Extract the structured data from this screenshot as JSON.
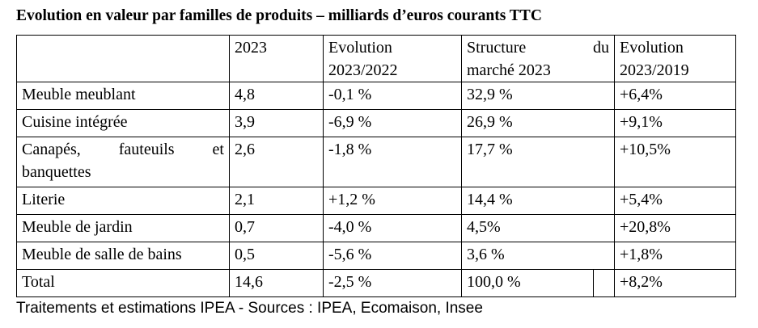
{
  "title": "Evolution en valeur par familles de produits – milliards d’euros courants TTC",
  "table": {
    "headers": {
      "col1": "2023",
      "col2_line1": "Evolution",
      "col2_line2": "2023/2022",
      "col3_line1a": "Structure",
      "col3_line1b": "du",
      "col3_line2": "marché 2023",
      "col4_line1": "Evolution",
      "col4_line2": "2023/2019"
    },
    "rows": [
      {
        "label": "Meuble meublant",
        "v2023": "4,8",
        "evo2022": "-0,1 %",
        "structure": "32,9 %",
        "evo2019": "+6,4%"
      },
      {
        "label": "Cuisine intégrée",
        "v2023": "3,9",
        "evo2022": "-6,9 %",
        "structure": "26,9 %",
        "evo2019": "+9,1%"
      },
      {
        "label_line1": "Canapés, fauteuils et",
        "label_line2": "banquettes",
        "v2023": "2,6",
        "evo2022": "-1,8 %",
        "structure": "17,7 %",
        "evo2019": "+10,5%"
      },
      {
        "label": "Literie",
        "v2023": "2,1",
        "evo2022": "+1,2 %",
        "structure": "14,4 %",
        "evo2019": "+5,4%"
      },
      {
        "label": "Meuble de jardin",
        "v2023": "0,7",
        "evo2022": "-4,0 %",
        "structure": "4,5%",
        "evo2019": "+20,8%"
      },
      {
        "label": "Meuble de salle de bains",
        "v2023": "0,5",
        "evo2022": "-5,6 %",
        "structure": "3,6 %",
        "evo2019": "+1,8%"
      },
      {
        "label": "Total",
        "v2023": "14,6",
        "evo2022": "-2,5 %",
        "structure": "100,0 %",
        "evo2019": "+8,2%"
      }
    ]
  },
  "source": "Traitements et estimations IPEA - Sources : IPEA, Ecomaison, Insee"
}
